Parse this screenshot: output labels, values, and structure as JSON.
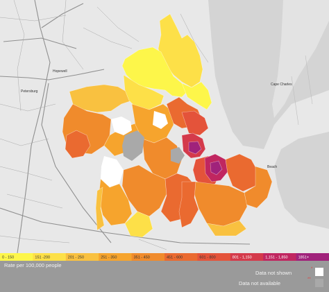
{
  "map": {
    "places": [
      "Hopewell",
      "Petersburg",
      "Cape Charles",
      "Beach"
    ]
  },
  "legend": {
    "bins": [
      {
        "label": "0 - 150",
        "color": "#fdf64a"
      },
      {
        "label": "151 -200",
        "color": "#fde048"
      },
      {
        "label": "201 - 250",
        "color": "#f9c140"
      },
      {
        "label": "251 - 350",
        "color": "#f6a42d"
      },
      {
        "label": "351 - 450",
        "color": "#f08b2c"
      },
      {
        "label": "451 - 600",
        "color": "#ea6a30"
      },
      {
        "label": "601 - 800",
        "color": "#e4533a"
      },
      {
        "label": "801 - 1,150",
        "color": "#d43a4b"
      },
      {
        "label": "1,151 - 1,850",
        "color": "#c02660"
      },
      {
        "label": "1851+",
        "color": "#a0227b"
      }
    ],
    "caption": "Rate per 100,000 people",
    "not_shown_label": "Data not shown",
    "not_shown_marker": "*",
    "not_available_label": "Data not available",
    "not_available_marker": "**",
    "not_shown_color": "#ffffff",
    "not_available_color": "#a9a9a9"
  }
}
